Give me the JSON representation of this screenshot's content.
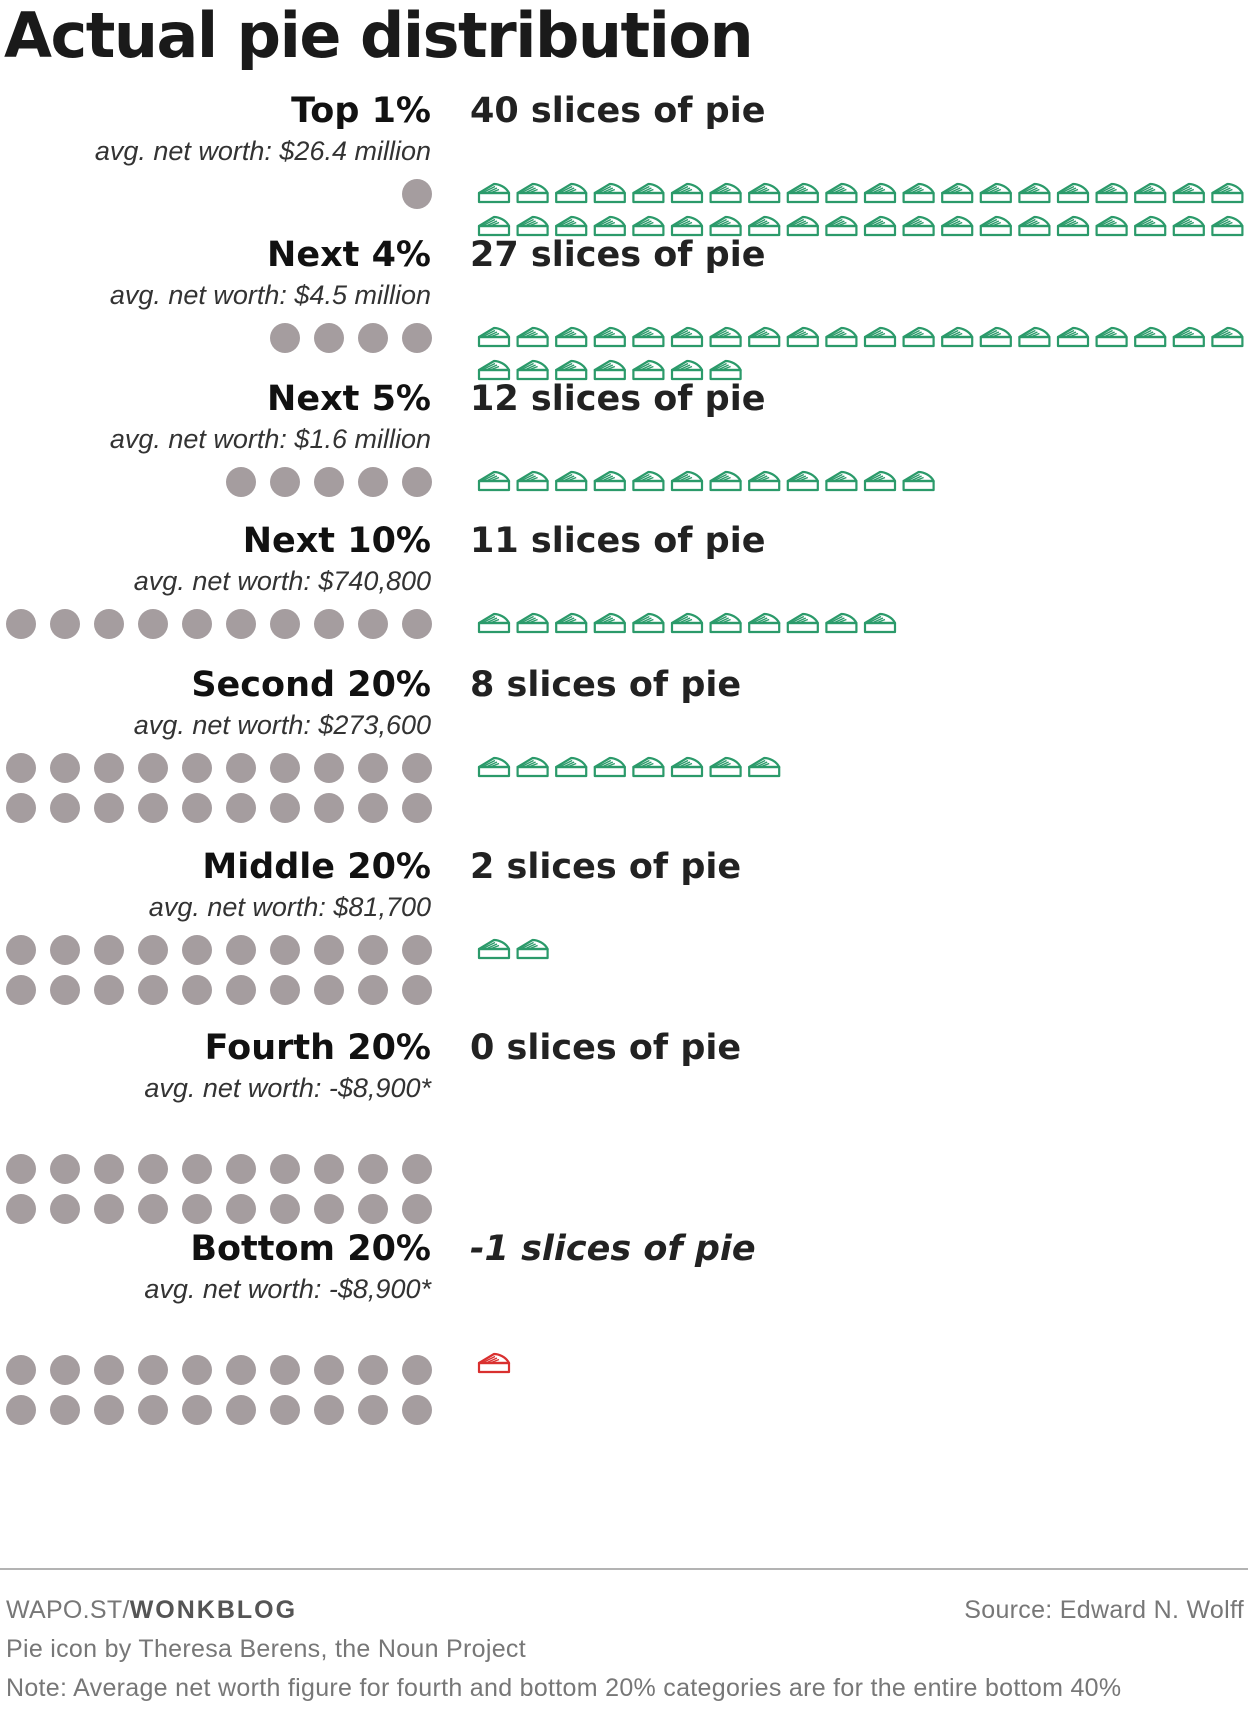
{
  "title": "Actual pie distribution",
  "colors": {
    "dot": "#a59d9f",
    "pie": "#2b9a6a",
    "pie_negative": "#d9302f"
  },
  "chart_data": {
    "type": "icon-array",
    "title": "Actual pie distribution",
    "groups": [
      {
        "label": "Top 1%",
        "networth": "avg. net worth: $26.4 million",
        "people": 1,
        "slices": 40,
        "slices_label": "40 slices of pie"
      },
      {
        "label": "Next 4%",
        "networth": "avg. net worth: $4.5 million",
        "people": 4,
        "slices": 27,
        "slices_label": "27 slices of pie"
      },
      {
        "label": "Next 5%",
        "networth": "avg. net worth: $1.6 million",
        "people": 5,
        "slices": 12,
        "slices_label": "12 slices of pie"
      },
      {
        "label": "Next 10%",
        "networth": "avg. net worth: $740,800",
        "people": 10,
        "slices": 11,
        "slices_label": "11 slices of pie"
      },
      {
        "label": "Second 20%",
        "networth": "avg. net worth: $273,600",
        "people": 20,
        "slices": 8,
        "slices_label": "8 slices of pie"
      },
      {
        "label": "Middle 20%",
        "networth": "avg. net worth: $81,700",
        "people": 20,
        "slices": 2,
        "slices_label": "2 slices of pie"
      },
      {
        "label": "Fourth 20%",
        "networth": "avg. net worth: -$8,900*",
        "people": 20,
        "slices": 0,
        "slices_label": "0 slices of pie"
      },
      {
        "label": "Bottom 20%",
        "networth": "avg. net worth: -$8,900*",
        "people": 20,
        "slices": -1,
        "slices_label": "-1 slices of pie"
      }
    ]
  },
  "footer": {
    "brand_prefix": "WAPO.ST/",
    "brand_name": "WONKBLOG",
    "source": "Source: Edward N. Wolff",
    "icon_credit": "Pie icon by Theresa Berens, the Noun Project",
    "note": "Note: Average net worth figure for fourth and bottom 20% categories are for the entire bottom 40%"
  }
}
